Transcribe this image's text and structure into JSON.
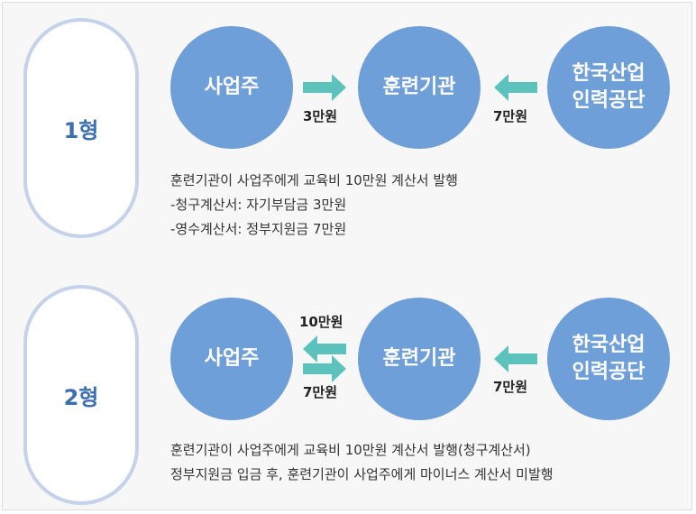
{
  "colors": {
    "circle": "#6f9fd8",
    "arrow": "#5cc3bc",
    "pill_border": "#c4d3ea",
    "pill_text": "#3a6fb1"
  },
  "type1": {
    "label": "1형",
    "employer": "사업주",
    "institution": "훈련기관",
    "agency_line1": "한국산업",
    "agency_line2": "인력공단",
    "amount_employer": "3만원",
    "amount_agency": "7만원",
    "desc": [
      "훈련기관이 사업주에게 교육비 10만원 계산서 발행",
      "-청구계산서: 자기부담금 3만원",
      "-영수계산서: 정부지원금 7만원"
    ]
  },
  "type2": {
    "label": "2형",
    "employer": "사업주",
    "institution": "훈련기관",
    "agency_line1": "한국산업",
    "agency_line2": "인력공단",
    "amount_top": "10만원",
    "amount_bottom": "7만원",
    "amount_agency": "7만원",
    "desc": [
      "훈련기관이 사업주에게 교육비 10만원 계산서 발행(청구계산서)",
      "정부지원금 입금 후,  훈련기관이 사업주에게 마이너스 계산서 미발행"
    ]
  }
}
